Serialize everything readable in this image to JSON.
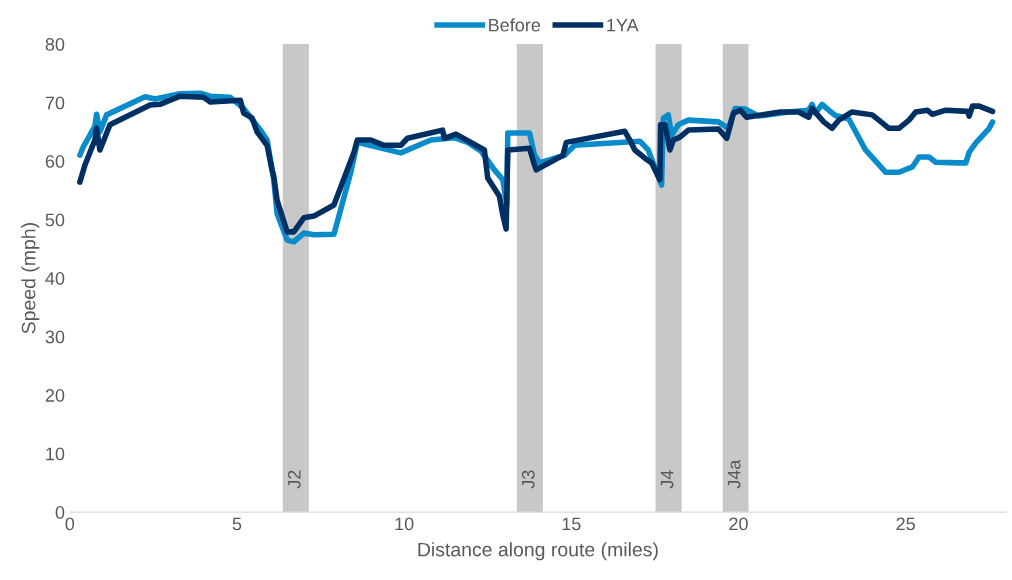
{
  "chart_data": {
    "type": "line",
    "xlabel": "Distance along route (miles)",
    "ylabel": "Speed (mph)",
    "xlim": [
      0,
      28
    ],
    "xticks": [
      0,
      5,
      10,
      15,
      20,
      25
    ],
    "ylim": [
      0,
      80
    ],
    "yticks": [
      0,
      10,
      20,
      30,
      40,
      50,
      60,
      70,
      80
    ],
    "grid": false,
    "legend": "top",
    "line_style": "solid",
    "marker": "none",
    "bands": [
      {
        "axis": "x",
        "from": 6.37,
        "to": 7.15,
        "label": "J2",
        "color": "#c8c8c8"
      },
      {
        "axis": "x",
        "from": 13.37,
        "to": 14.15,
        "label": "J3",
        "color": "#c8c8c8"
      },
      {
        "axis": "x",
        "from": 17.52,
        "to": 18.3,
        "label": "J4",
        "color": "#c8c8c8"
      },
      {
        "axis": "x",
        "from": 19.53,
        "to": 20.3,
        "label": "J4a",
        "color": "#c8c8c8"
      }
    ],
    "series": [
      {
        "name": "Before",
        "color": "#0a8ccb",
        "x": [
          0.3,
          0.4,
          0.75,
          0.8,
          0.9,
          1.1,
          2.25,
          2.55,
          3.3,
          3.9,
          4.2,
          4.8,
          5.2,
          5.7,
          5.9,
          6.1,
          6.2,
          6.5,
          6.7,
          7.0,
          7.3,
          7.9,
          8.4,
          8.6,
          9.9,
          10.8,
          11.5,
          11.9,
          12.3,
          12.7,
          12.95,
          13.07,
          13.1,
          13.75,
          13.9,
          14.05,
          14.8,
          15.1,
          17.05,
          17.3,
          17.7,
          17.75,
          17.9,
          18.0,
          18.2,
          18.5,
          19.4,
          19.7,
          19.9,
          20.2,
          20.6,
          21.5,
          22.1,
          22.2,
          22.3,
          22.5,
          22.7,
          22.9,
          23.3,
          23.8,
          24.4,
          24.8,
          25.2,
          25.4,
          25.7,
          25.9,
          26.6,
          26.8,
          26.9,
          27.1,
          27.5,
          27.6
        ],
        "values": [
          61,
          62.4,
          66,
          68,
          65,
          67.9,
          71,
          70.6,
          71.5,
          71.6,
          71.1,
          70.9,
          69,
          65.3,
          63.6,
          56.8,
          51,
          46.5,
          46.2,
          47.7,
          47.4,
          47.5,
          58,
          63.2,
          61.4,
          63.6,
          64,
          63.2,
          61.7,
          58.5,
          56.8,
          52.5,
          64.8,
          64.8,
          61,
          59.7,
          61,
          62.7,
          63.4,
          61.9,
          55.9,
          67.3,
          67.9,
          64.4,
          66.2,
          67,
          66.7,
          65.6,
          69,
          68.9,
          67.7,
          68.4,
          68.7,
          69.7,
          68.2,
          69.7,
          68.7,
          67.8,
          67.2,
          61.9,
          58.1,
          58.1,
          59,
          60.7,
          60.7,
          59.8,
          59.7,
          59.7,
          61.5,
          63.1,
          65.6,
          66.7
        ]
      },
      {
        "name": "1YA",
        "color": "#003063",
        "x": [
          0.3,
          0.45,
          0.75,
          0.8,
          0.9,
          1.2,
          2.4,
          2.7,
          3.0,
          3.3,
          4.0,
          4.2,
          5.1,
          5.2,
          5.45,
          5.6,
          5.9,
          6.05,
          6.1,
          6.2,
          6.5,
          6.7,
          7.0,
          7.3,
          7.9,
          8.5,
          8.6,
          9.0,
          9.4,
          9.9,
          10.1,
          11.15,
          11.2,
          11.55,
          12.4,
          12.5,
          12.85,
          12.95,
          13.05,
          13.1,
          13.75,
          13.9,
          13.95,
          14.75,
          14.85,
          16.6,
          16.75,
          16.9,
          17.2,
          17.4,
          17.65,
          17.67,
          17.8,
          17.95,
          18.05,
          18.25,
          18.5,
          19.4,
          19.65,
          19.85,
          20.05,
          20.25,
          21.25,
          21.8,
          22.1,
          22.2,
          22.4,
          22.55,
          22.8,
          23.0,
          23.4,
          24.0,
          24.2,
          24.5,
          24.8,
          25.1,
          25.3,
          25.65,
          25.8,
          26.2,
          26.85,
          26.9,
          27.0,
          27.2,
          27.6
        ],
        "values": [
          56.4,
          59.3,
          63.6,
          65.6,
          61.9,
          66.2,
          69.6,
          69.7,
          70.4,
          71.1,
          70.9,
          70.1,
          70.4,
          68.2,
          67.4,
          65,
          62.7,
          58.5,
          57.4,
          53.3,
          47.9,
          47.9,
          50.3,
          50.6,
          52.5,
          61.5,
          63.6,
          63.6,
          62.7,
          62.7,
          63.9,
          65.3,
          63.9,
          64.6,
          61.9,
          57.1,
          54,
          50.8,
          48.4,
          61.9,
          62.2,
          59.3,
          58.5,
          61,
          63.2,
          65.1,
          63.6,
          61.9,
          60.5,
          59.7,
          56.8,
          66.2,
          66.2,
          61.9,
          63.6,
          64.1,
          65.3,
          65.5,
          63.9,
          68.2,
          68.7,
          67.5,
          68.4,
          68.4,
          67.5,
          69,
          67.7,
          66.7,
          65.6,
          67,
          68.4,
          67.9,
          67,
          65.6,
          65.6,
          67,
          68.4,
          68.7,
          68,
          68.7,
          68.5,
          67.7,
          69.4,
          69.4,
          68.5
        ]
      }
    ]
  }
}
